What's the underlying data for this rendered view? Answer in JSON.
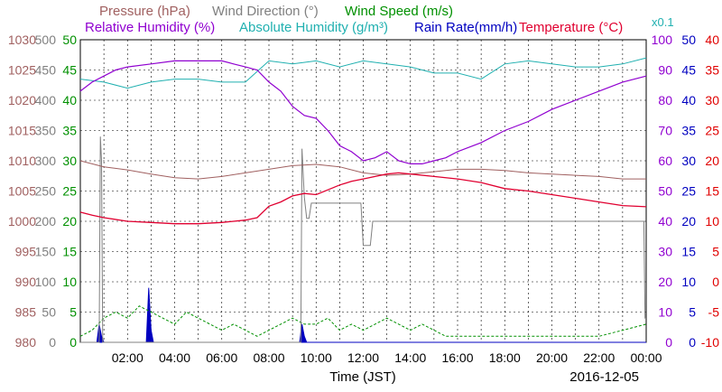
{
  "chart_data": {
    "type": "line",
    "date": "2016-12-05",
    "xlabel": "Time (JST)",
    "x_ticks": [
      "02:00",
      "04:00",
      "06:00",
      "08:00",
      "10:00",
      "12:00",
      "14:00",
      "16:00",
      "18:00",
      "20:00",
      "22:00",
      "00:00"
    ],
    "x_range_hours": [
      0,
      24
    ],
    "legend": {
      "row1": [
        "Pressure (hPa)",
        "Wind Direction (°)",
        "Wind Speed (m/s)"
      ],
      "row2": [
        "Relative Humidity (%)",
        "Absolute Humidity (g/m³)",
        "Rain Rate(mm/h)",
        "Temperature (°C)",
        "x0.1"
      ]
    },
    "axes": {
      "pressure": {
        "ticks": [
          "980",
          "985",
          "990",
          "995",
          "1000",
          "1005",
          "1010",
          "1015",
          "1020",
          "1025",
          "1030"
        ],
        "range": [
          980,
          1030
        ],
        "color": "#a06060"
      },
      "wind_direction": {
        "ticks": [
          "0",
          "50",
          "100",
          "150",
          "200",
          "250",
          "300",
          "350",
          "400",
          "450",
          "500"
        ],
        "range": [
          0,
          500
        ],
        "color": "#808080"
      },
      "wind_speed": {
        "ticks": [
          "0",
          "5",
          "10",
          "15",
          "20",
          "25",
          "30",
          "35",
          "40",
          "45",
          "50"
        ],
        "range": [
          0,
          50
        ],
        "color": "#009000"
      },
      "humidity": {
        "ticks": [
          "0",
          "10",
          "20",
          "30",
          "40",
          "50",
          "60",
          "70",
          "80",
          "90",
          "100"
        ],
        "range": [
          0,
          100
        ],
        "color": "#9000d0"
      },
      "rain_rate": {
        "ticks": [
          "0",
          "5",
          "10",
          "15",
          "20",
          "25",
          "30",
          "35",
          "40",
          "45",
          "50"
        ],
        "range": [
          0,
          50
        ],
        "color": "#0000c0"
      },
      "temperature": {
        "ticks": [
          "-10",
          "-5",
          "0",
          "5",
          "10",
          "15",
          "20",
          "25",
          "30",
          "35",
          "40"
        ],
        "range": [
          -10,
          40
        ],
        "color": "#e00000"
      }
    },
    "colors": {
      "pressure": "#a06060",
      "wind_direction": "#808080",
      "wind_speed": "#009000",
      "relative_humidity": "#9000d0",
      "absolute_humidity": "#20b0b0",
      "rain_rate": "#0000c0",
      "temperature": "#e00030",
      "x01": "#20b0b0"
    },
    "series": {
      "pressure": {
        "x": [
          0,
          1,
          2,
          3,
          4,
          5,
          6,
          7,
          8,
          9,
          10,
          11,
          12,
          13,
          14,
          15,
          16,
          17,
          18,
          19,
          20,
          21,
          22,
          23,
          24
        ],
        "y": [
          1010,
          1009,
          1008.5,
          1007.8,
          1007.2,
          1007,
          1007.4,
          1008,
          1008.6,
          1009.2,
          1009.4,
          1009,
          1008,
          1007.6,
          1007.8,
          1008.2,
          1008.6,
          1008.6,
          1008.4,
          1008,
          1007.8,
          1007.6,
          1007.4,
          1007,
          1007
        ]
      },
      "temperature": {
        "x": [
          0,
          0.5,
          1,
          2,
          3,
          4,
          5,
          6,
          7,
          7.5,
          8,
          8.5,
          9,
          9.5,
          10,
          10.5,
          11,
          11.5,
          12,
          12.5,
          13,
          13.5,
          14,
          15,
          16,
          17,
          18,
          19,
          20,
          21,
          22,
          23,
          24
        ],
        "y": [
          11.5,
          11,
          10.6,
          10,
          9.8,
          9.6,
          9.6,
          9.8,
          10.2,
          10.6,
          12.5,
          13.2,
          14.2,
          14.6,
          14.4,
          15.2,
          16,
          16.6,
          17,
          17.4,
          17.8,
          18,
          17.8,
          17.4,
          17,
          16.4,
          15.4,
          15,
          14.4,
          13.8,
          13.2,
          12.6,
          12.4
        ]
      },
      "relative_humidity": {
        "x": [
          0,
          0.5,
          1,
          1.5,
          2,
          3,
          4,
          5,
          6,
          6.5,
          7,
          7.5,
          8,
          8.5,
          9,
          9.5,
          10,
          10.5,
          11,
          11.5,
          12,
          12.5,
          13,
          13.5,
          14,
          14.5,
          15,
          15.5,
          16,
          17,
          18,
          19,
          20,
          21,
          22,
          23,
          24
        ],
        "y": [
          83,
          86,
          88,
          90,
          91,
          92,
          93,
          93,
          93,
          92,
          91,
          90,
          86,
          83,
          78,
          75,
          74,
          70,
          65,
          63,
          60,
          61,
          63,
          60,
          59,
          59,
          60,
          61,
          63,
          66,
          70,
          73,
          77,
          80,
          83,
          86,
          88
        ]
      },
      "absolute_humidity": {
        "x": [
          0,
          1,
          2,
          3,
          4,
          5,
          6,
          7,
          8,
          9,
          10,
          11,
          12,
          13,
          14,
          15,
          16,
          17,
          18,
          19,
          20,
          21,
          22,
          23,
          24
        ],
        "y": [
          8.7,
          8.6,
          8.4,
          8.6,
          8.7,
          8.7,
          8.6,
          8.6,
          9.3,
          9.2,
          9.3,
          9.1,
          9.3,
          9.2,
          9.1,
          8.9,
          8.9,
          8.7,
          9.2,
          9.3,
          9.2,
          9.1,
          9.1,
          9.2,
          9.4
        ]
      },
      "wind_direction": {
        "x": [
          0,
          0.8,
          0.85,
          0.9,
          0.95,
          1,
          2,
          3,
          4,
          5,
          6,
          7,
          8,
          9,
          9.35,
          9.4,
          9.5,
          9.6,
          9.7,
          9.8,
          10,
          11,
          11.9,
          12.0,
          12.1,
          12.3,
          12.4,
          12.5,
          13,
          14,
          15,
          16,
          17,
          18,
          19,
          20,
          21,
          22,
          23,
          23.9,
          23.95,
          24
        ],
        "y": [
          0,
          0,
          340,
          300,
          0,
          0,
          0,
          0,
          0,
          0,
          0,
          0,
          0,
          0,
          0,
          320,
          240,
          205,
          205,
          230,
          230,
          230,
          230,
          160,
          160,
          160,
          200,
          200,
          200,
          200,
          200,
          200,
          200,
          200,
          200,
          200,
          200,
          200,
          200,
          200,
          40,
          40
        ]
      },
      "wind_speed": {
        "x": [
          0,
          0.5,
          1,
          1.5,
          2,
          2.5,
          3,
          3.5,
          4,
          4.5,
          5,
          5.5,
          6,
          6.5,
          7,
          7.5,
          8,
          8.5,
          9,
          9.5,
          10,
          10.5,
          11,
          11.5,
          12,
          12.5,
          13,
          13.5,
          14,
          14.5,
          15,
          15.5,
          16,
          17,
          18,
          19,
          20,
          21,
          22,
          23,
          24
        ],
        "y": [
          1,
          2,
          4,
          5,
          4,
          6,
          5,
          4,
          3,
          5,
          4,
          3,
          2,
          3,
          2,
          1,
          2,
          3,
          4,
          3,
          3,
          4,
          2,
          3,
          2,
          3,
          4,
          3,
          2,
          3,
          2,
          1,
          1,
          1,
          1,
          1,
          1,
          1,
          1,
          2,
          3
        ]
      },
      "rain_rate": {
        "x": [
          0,
          0.7,
          0.8,
          0.9,
          1.0,
          2.8,
          2.9,
          3.0,
          3.1,
          9.3,
          9.4,
          9.5,
          9.6,
          24
        ],
        "y": [
          0,
          0,
          3,
          1,
          0,
          0,
          9,
          2,
          0,
          0,
          3,
          1,
          0,
          0
        ]
      }
    }
  }
}
